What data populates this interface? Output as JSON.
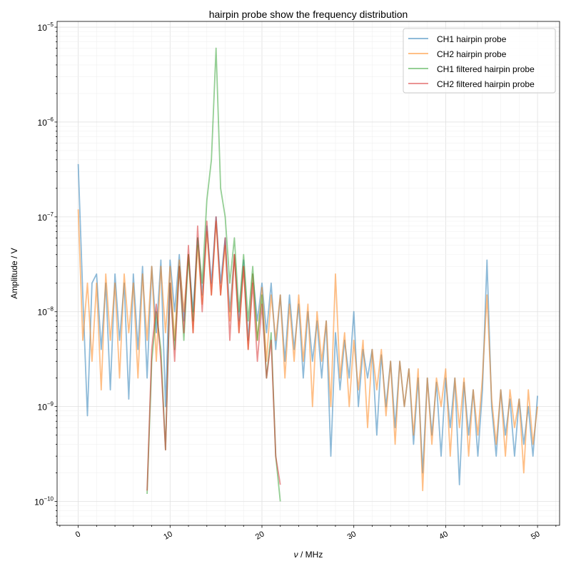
{
  "chart_data": {
    "type": "line",
    "title": "hairpin probe show the frequency distribution",
    "xlabel_symbol": "ν",
    "xlabel_unit": " / MHz",
    "ylabel": "Amplitude / V",
    "xlim": [
      -2.3,
      52.4
    ],
    "ylim": [
      5.6e-11,
      1.15e-05
    ],
    "yscale": "log",
    "xticks": [
      0,
      10,
      20,
      30,
      40,
      50
    ],
    "xtick_labels": [
      "0",
      "10",
      "20",
      "30",
      "40",
      "50"
    ],
    "yticks": [
      -10,
      -9,
      -8,
      -7,
      -6,
      -5
    ],
    "ytick_labels": [
      {
        "base": "10",
        "exp": "−10"
      },
      {
        "base": "10",
        "exp": "−9"
      },
      {
        "base": "10",
        "exp": "−8"
      },
      {
        "base": "10",
        "exp": "−7"
      },
      {
        "base": "10",
        "exp": "−6"
      },
      {
        "base": "10",
        "exp": "−5"
      }
    ],
    "grid": true,
    "legend_position": "top-right",
    "series": [
      {
        "name": "CH1 hairpin probe",
        "color": "#1f77b4",
        "x0": 0,
        "dx": 0.5,
        "values": [
          3.6e-07,
          1.5e-08,
          8e-10,
          2e-08,
          2.5e-08,
          4e-09,
          2e-08,
          1.5e-09,
          2.5e-08,
          5e-09,
          2e-08,
          1.2e-09,
          2.5e-08,
          4e-09,
          3e-08,
          2e-09,
          3e-08,
          6e-09,
          3.5e-08,
          1e-09,
          3.5e-08,
          1e-08,
          4e-08,
          8e-09,
          4e-08,
          1e-08,
          6e-08,
          1.5e-08,
          8e-08,
          2e-08,
          1e-07,
          2e-08,
          6e-08,
          1e-08,
          4e-08,
          8e-09,
          3.5e-08,
          5e-09,
          2.5e-08,
          8e-09,
          2e-08,
          6e-09,
          2e-08,
          4e-09,
          1.5e-08,
          3e-09,
          1.5e-08,
          4e-09,
          1.2e-08,
          2e-09,
          1e-08,
          3e-09,
          8e-09,
          2e-09,
          8e-09,
          3e-10,
          6e-09,
          1.5e-09,
          5e-09,
          2e-09,
          1e-08,
          1e-09,
          4e-09,
          2e-09,
          4e-09,
          5e-10,
          3.5e-09,
          1e-09,
          3e-09,
          6e-10,
          3e-09,
          1e-09,
          2.5e-09,
          4e-10,
          2e-09,
          2e-10,
          2e-09,
          5e-10,
          1.8e-09,
          3e-10,
          2e-09,
          6e-10,
          2e-09,
          1.5e-10,
          1.8e-09,
          5e-10,
          1.5e-09,
          3e-10,
          1.5e-09,
          3.5e-08,
          1e-09,
          3e-10,
          1.5e-09,
          5e-10,
          1.2e-09,
          3e-10,
          1.2e-09,
          4e-10,
          1e-09,
          3e-10,
          1.3e-09
        ]
      },
      {
        "name": "CH2 hairpin probe",
        "color": "#ff7f0e",
        "x0": 0,
        "dx": 0.5,
        "values": [
          1.2e-07,
          5e-09,
          2e-08,
          3e-09,
          2e-08,
          1.5e-09,
          2.5e-08,
          5e-09,
          2e-08,
          2e-09,
          2.5e-08,
          6e-09,
          2e-08,
          2e-09,
          2.5e-08,
          5e-09,
          3e-08,
          3e-09,
          3e-08,
          6e-09,
          3e-08,
          5e-09,
          3.5e-08,
          1e-08,
          4e-08,
          6e-09,
          5e-08,
          1.2e-08,
          7e-08,
          1.5e-08,
          9e-08,
          1.5e-08,
          5e-08,
          8e-09,
          4e-08,
          6e-09,
          3e-08,
          4e-09,
          2.5e-08,
          5e-09,
          1.8e-08,
          3e-09,
          1.5e-08,
          5e-09,
          1.5e-08,
          2e-09,
          1.2e-08,
          3e-09,
          1.5e-08,
          3e-09,
          1.2e-08,
          1e-09,
          1e-08,
          3e-09,
          8e-09,
          1e-09,
          2.5e-08,
          2e-09,
          6e-09,
          1e-09,
          5e-09,
          1.5e-09,
          5e-09,
          6e-10,
          4e-09,
          1.5e-09,
          4e-09,
          8e-10,
          3e-09,
          4e-10,
          3e-09,
          1e-09,
          2.5e-09,
          5e-10,
          2.5e-09,
          1.3e-10,
          2e-09,
          4e-10,
          2e-09,
          1e-09,
          2.5e-09,
          3e-10,
          2e-09,
          6e-10,
          2e-09,
          3e-10,
          1.5e-09,
          5e-10,
          2e-09,
          1.5e-08,
          1.2e-09,
          4e-10,
          1.5e-09,
          3e-10,
          1.5e-09,
          6e-10,
          1.2e-09,
          2e-10,
          1.5e-09,
          4e-10,
          1e-09
        ]
      },
      {
        "name": "CH1 filtered hairpin probe",
        "color": "#2ca02c",
        "x0": 7.5,
        "dx": 0.5,
        "values": [
          1.2e-10,
          3e-09,
          1e-08,
          4e-09,
          3.5e-10,
          2e-08,
          4e-09,
          3e-08,
          5e-09,
          4e-08,
          8e-09,
          6e-08,
          2e-08,
          1.5e-07,
          4e-07,
          6e-06,
          2e-07,
          1e-07,
          2e-08,
          6e-08,
          1e-08,
          4e-08,
          8e-09,
          3e-08,
          5e-09,
          1.5e-08,
          2e-09,
          6e-09,
          3e-10,
          1e-10
        ]
      },
      {
        "name": "CH2 filtered hairpin probe",
        "color": "#d62728",
        "x0": 7.5,
        "dx": 0.5,
        "values": [
          1.3e-10,
          4e-09,
          1.2e-08,
          3e-09,
          3.5e-10,
          2e-08,
          3e-09,
          3e-08,
          6e-09,
          5e-08,
          6e-09,
          8e-08,
          1e-08,
          9e-08,
          1.5e-08,
          1e-07,
          1.5e-08,
          6e-08,
          5e-09,
          4e-08,
          6e-09,
          3e-08,
          4e-09,
          2e-08,
          3e-09,
          1.2e-08,
          2e-09,
          5e-09,
          3e-10,
          1.5e-10
        ]
      }
    ]
  }
}
